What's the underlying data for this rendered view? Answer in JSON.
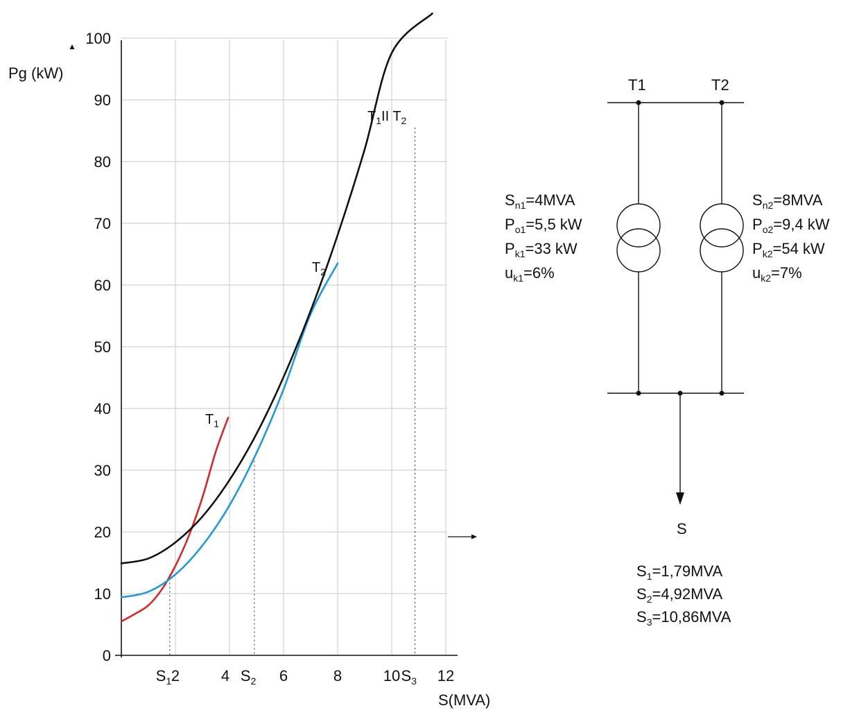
{
  "chart_data": {
    "type": "line",
    "title": "",
    "xlabel": "S(MVA)",
    "ylabel": "Pg (kW)",
    "xlim": [
      0,
      12
    ],
    "ylim": [
      0,
      100
    ],
    "x_ticks": [
      2,
      4,
      6,
      8,
      10,
      12
    ],
    "y_ticks": [
      0,
      10,
      20,
      30,
      40,
      50,
      60,
      70,
      80,
      90,
      100
    ],
    "grid": true,
    "series": [
      {
        "name": "T1",
        "label_main": "T",
        "label_sub": "1",
        "color": "#d62728",
        "points": [
          [
            0,
            5.5
          ],
          [
            0.5,
            6.7
          ],
          [
            1.0,
            8.1
          ],
          [
            1.5,
            10.7
          ],
          [
            2.0,
            14.5
          ],
          [
            2.5,
            19.4
          ],
          [
            3.0,
            25.6
          ],
          [
            3.5,
            33.1
          ],
          [
            3.95,
            38.5
          ]
        ]
      },
      {
        "name": "T2",
        "label_main": "T",
        "label_sub": "2",
        "color": "#1f9bd6",
        "points": [
          [
            0,
            9.4
          ],
          [
            1,
            10.3
          ],
          [
            2,
            13.1
          ],
          [
            3,
            17.8
          ],
          [
            4,
            24.3
          ],
          [
            5,
            32.8
          ],
          [
            6,
            43.1
          ],
          [
            7,
            55.3
          ],
          [
            8,
            63.5
          ]
        ]
      },
      {
        "name": "T1 II T2",
        "label_main": "T",
        "label_sub": "1",
        "label_main2": "II T",
        "label_sub2": "2",
        "color": "#111111",
        "points": [
          [
            0,
            14.9
          ],
          [
            1,
            15.7
          ],
          [
            2,
            18.3
          ],
          [
            3,
            22.5
          ],
          [
            4,
            28.4
          ],
          [
            5,
            35.9
          ],
          [
            6,
            45.1
          ],
          [
            7,
            55.8
          ],
          [
            8,
            68.1
          ],
          [
            9,
            82.0
          ],
          [
            10,
            97.6
          ],
          [
            11.5,
            104
          ]
        ]
      }
    ],
    "markers": [
      {
        "name": "S1",
        "main": "S",
        "sub": "1",
        "x": 1.79,
        "y": 13.1
      },
      {
        "name": "S2",
        "main": "S",
        "sub": "2",
        "x": 4.92,
        "y": 31.5
      },
      {
        "name": "S3",
        "main": "S",
        "sub": "3",
        "x": 10.86,
        "y": 85.5
      }
    ]
  },
  "diagram": {
    "t1_label": "T1",
    "t2_label": "T2",
    "load_label": "S",
    "t1_params": [
      {
        "main": "S",
        "sub": "n1",
        "rest": "=4MVA"
      },
      {
        "main": "P",
        "sub": "o1",
        "rest": "=5,5 kW"
      },
      {
        "main": "P",
        "sub": "k1",
        "rest": "=33 kW"
      },
      {
        "main": "u",
        "sub": "k1",
        "rest": "=6%"
      }
    ],
    "t2_params": [
      {
        "main": "S",
        "sub": "n2",
        "rest": "=8MVA"
      },
      {
        "main": "P",
        "sub": "o2",
        "rest": "=9,4 kW"
      },
      {
        "main": "P",
        "sub": "k2",
        "rest": "=54 kW"
      },
      {
        "main": "u",
        "sub": "k2",
        "rest": "=7%"
      }
    ],
    "results": [
      {
        "main": "S",
        "sub": "1",
        "rest": "=1,79MVA"
      },
      {
        "main": "S",
        "sub": "2",
        "rest": "=4,92MVA"
      },
      {
        "main": "S",
        "sub": "3",
        "rest": "=10,86MVA"
      }
    ]
  }
}
